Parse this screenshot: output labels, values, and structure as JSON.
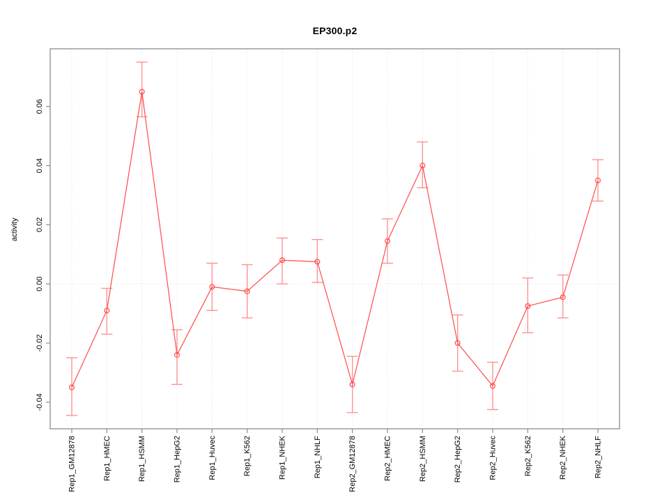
{
  "figure": {
    "title": "EP300.p2",
    "background": "#ffffff"
  },
  "chart_data": {
    "type": "line",
    "title": "EP300.p2",
    "xlabel": "",
    "ylabel": "activity",
    "legend": "none",
    "grid": "dotted vertical line at each category; dotted horizontal line at y=0",
    "ylim": [
      -0.049,
      0.0795
    ],
    "yticks": [
      0.06,
      0.04,
      0.02,
      0.0,
      -0.02,
      -0.04
    ],
    "ytick_labels": [
      "0.06",
      "0.04",
      "0.02",
      "0.00",
      "-0.02",
      "-0.04"
    ],
    "categories": [
      "Rep1_GM12878",
      "Rep1_HMEC",
      "Rep1_HSMM",
      "Rep1_HepG2",
      "Rep1_Huvec",
      "Rep1_K562",
      "Rep1_NHEK",
      "Rep1_NHLF",
      "Rep2_GM12878",
      "Rep2_HMEC",
      "Rep2_HSMM",
      "Rep2_HepG2",
      "Rep2_Huvec",
      "Rep2_K562",
      "Rep2_NHEK",
      "Rep2_NHLF"
    ],
    "series": [
      {
        "name": "activity",
        "marker": "open-circle",
        "values": [
          -0.035,
          -0.009,
          0.065,
          -0.024,
          -0.001,
          -0.0025,
          0.008,
          0.0075,
          -0.034,
          0.0145,
          0.04,
          -0.02,
          -0.0345,
          -0.0075,
          -0.0045,
          0.035
        ],
        "ci_low": [
          -0.0445,
          -0.017,
          0.0565,
          -0.034,
          -0.009,
          -0.0115,
          0.0,
          0.0005,
          -0.0435,
          0.007,
          0.0325,
          -0.0295,
          -0.0425,
          -0.0165,
          -0.0115,
          0.028
        ],
        "ci_high": [
          -0.025,
          -0.0015,
          0.075,
          -0.0155,
          0.007,
          0.0065,
          0.0155,
          0.015,
          -0.0245,
          0.022,
          0.048,
          -0.0105,
          -0.0265,
          0.002,
          0.003,
          0.042
        ]
      }
    ],
    "colors": {
      "line": "#ff4a4a",
      "marker": "#ff4a4a",
      "error_bar": "#ff9191",
      "grid": "#dcdcdc",
      "axis_box": "#8c8c8c",
      "tick": "#8c8c8c",
      "text": "#000000",
      "background": "#ffffff"
    }
  }
}
